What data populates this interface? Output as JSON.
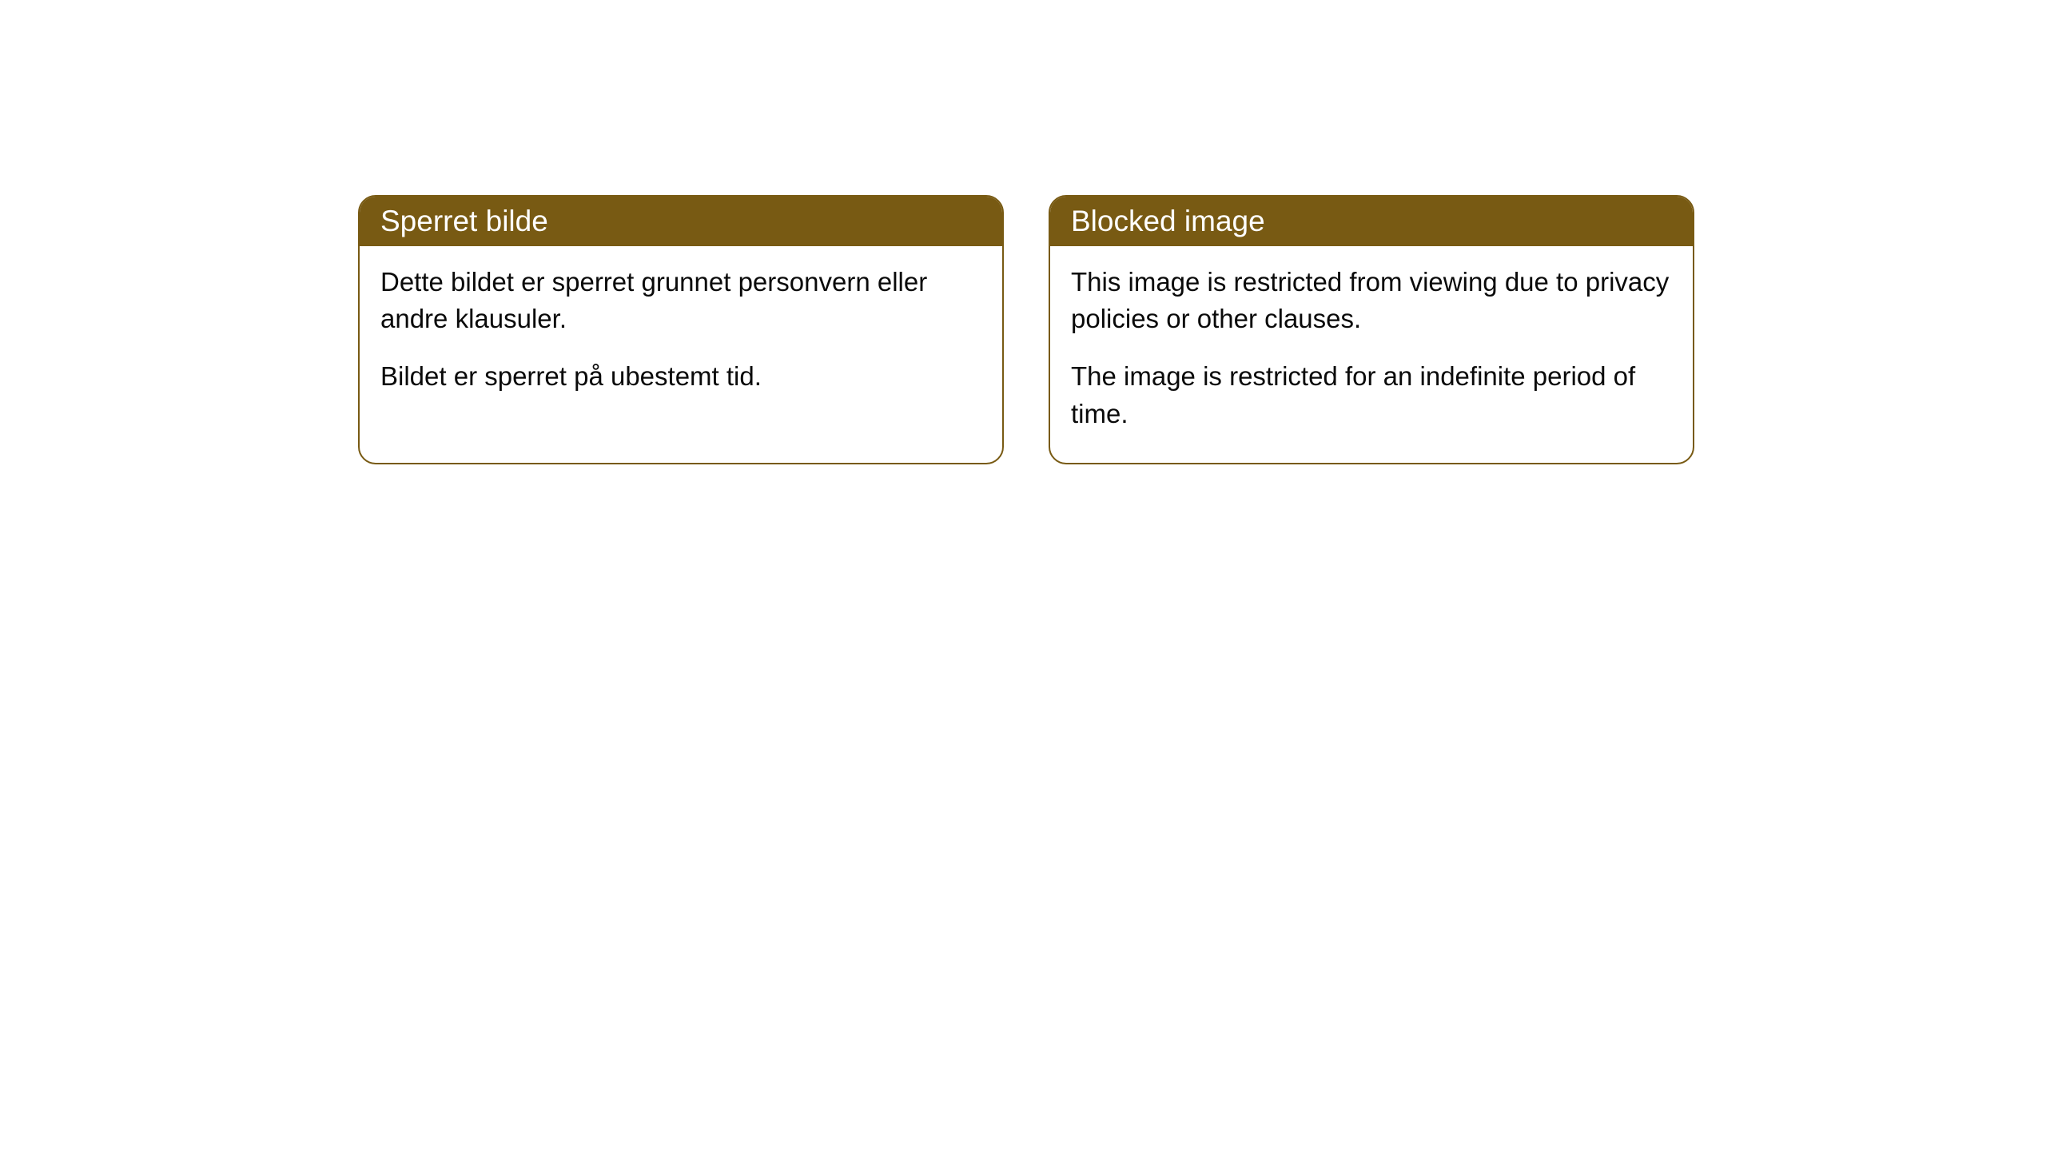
{
  "cards": [
    {
      "title": "Sperret bilde",
      "paragraph1": "Dette bildet er sperret grunnet personvern eller andre klausuler.",
      "paragraph2": "Bildet er sperret på ubestemt tid."
    },
    {
      "title": "Blocked image",
      "paragraph1": "This image is restricted from viewing due to privacy policies or other clauses.",
      "paragraph2": "The image is restricted for an indefinite period of time."
    }
  ],
  "styling": {
    "header_background": "#785a13",
    "header_text_color": "#ffffff",
    "border_color": "#785a13",
    "body_background": "#ffffff",
    "body_text_color": "#0a0a0a",
    "border_radius": 22,
    "header_font_size": 37,
    "body_font_size": 33
  }
}
